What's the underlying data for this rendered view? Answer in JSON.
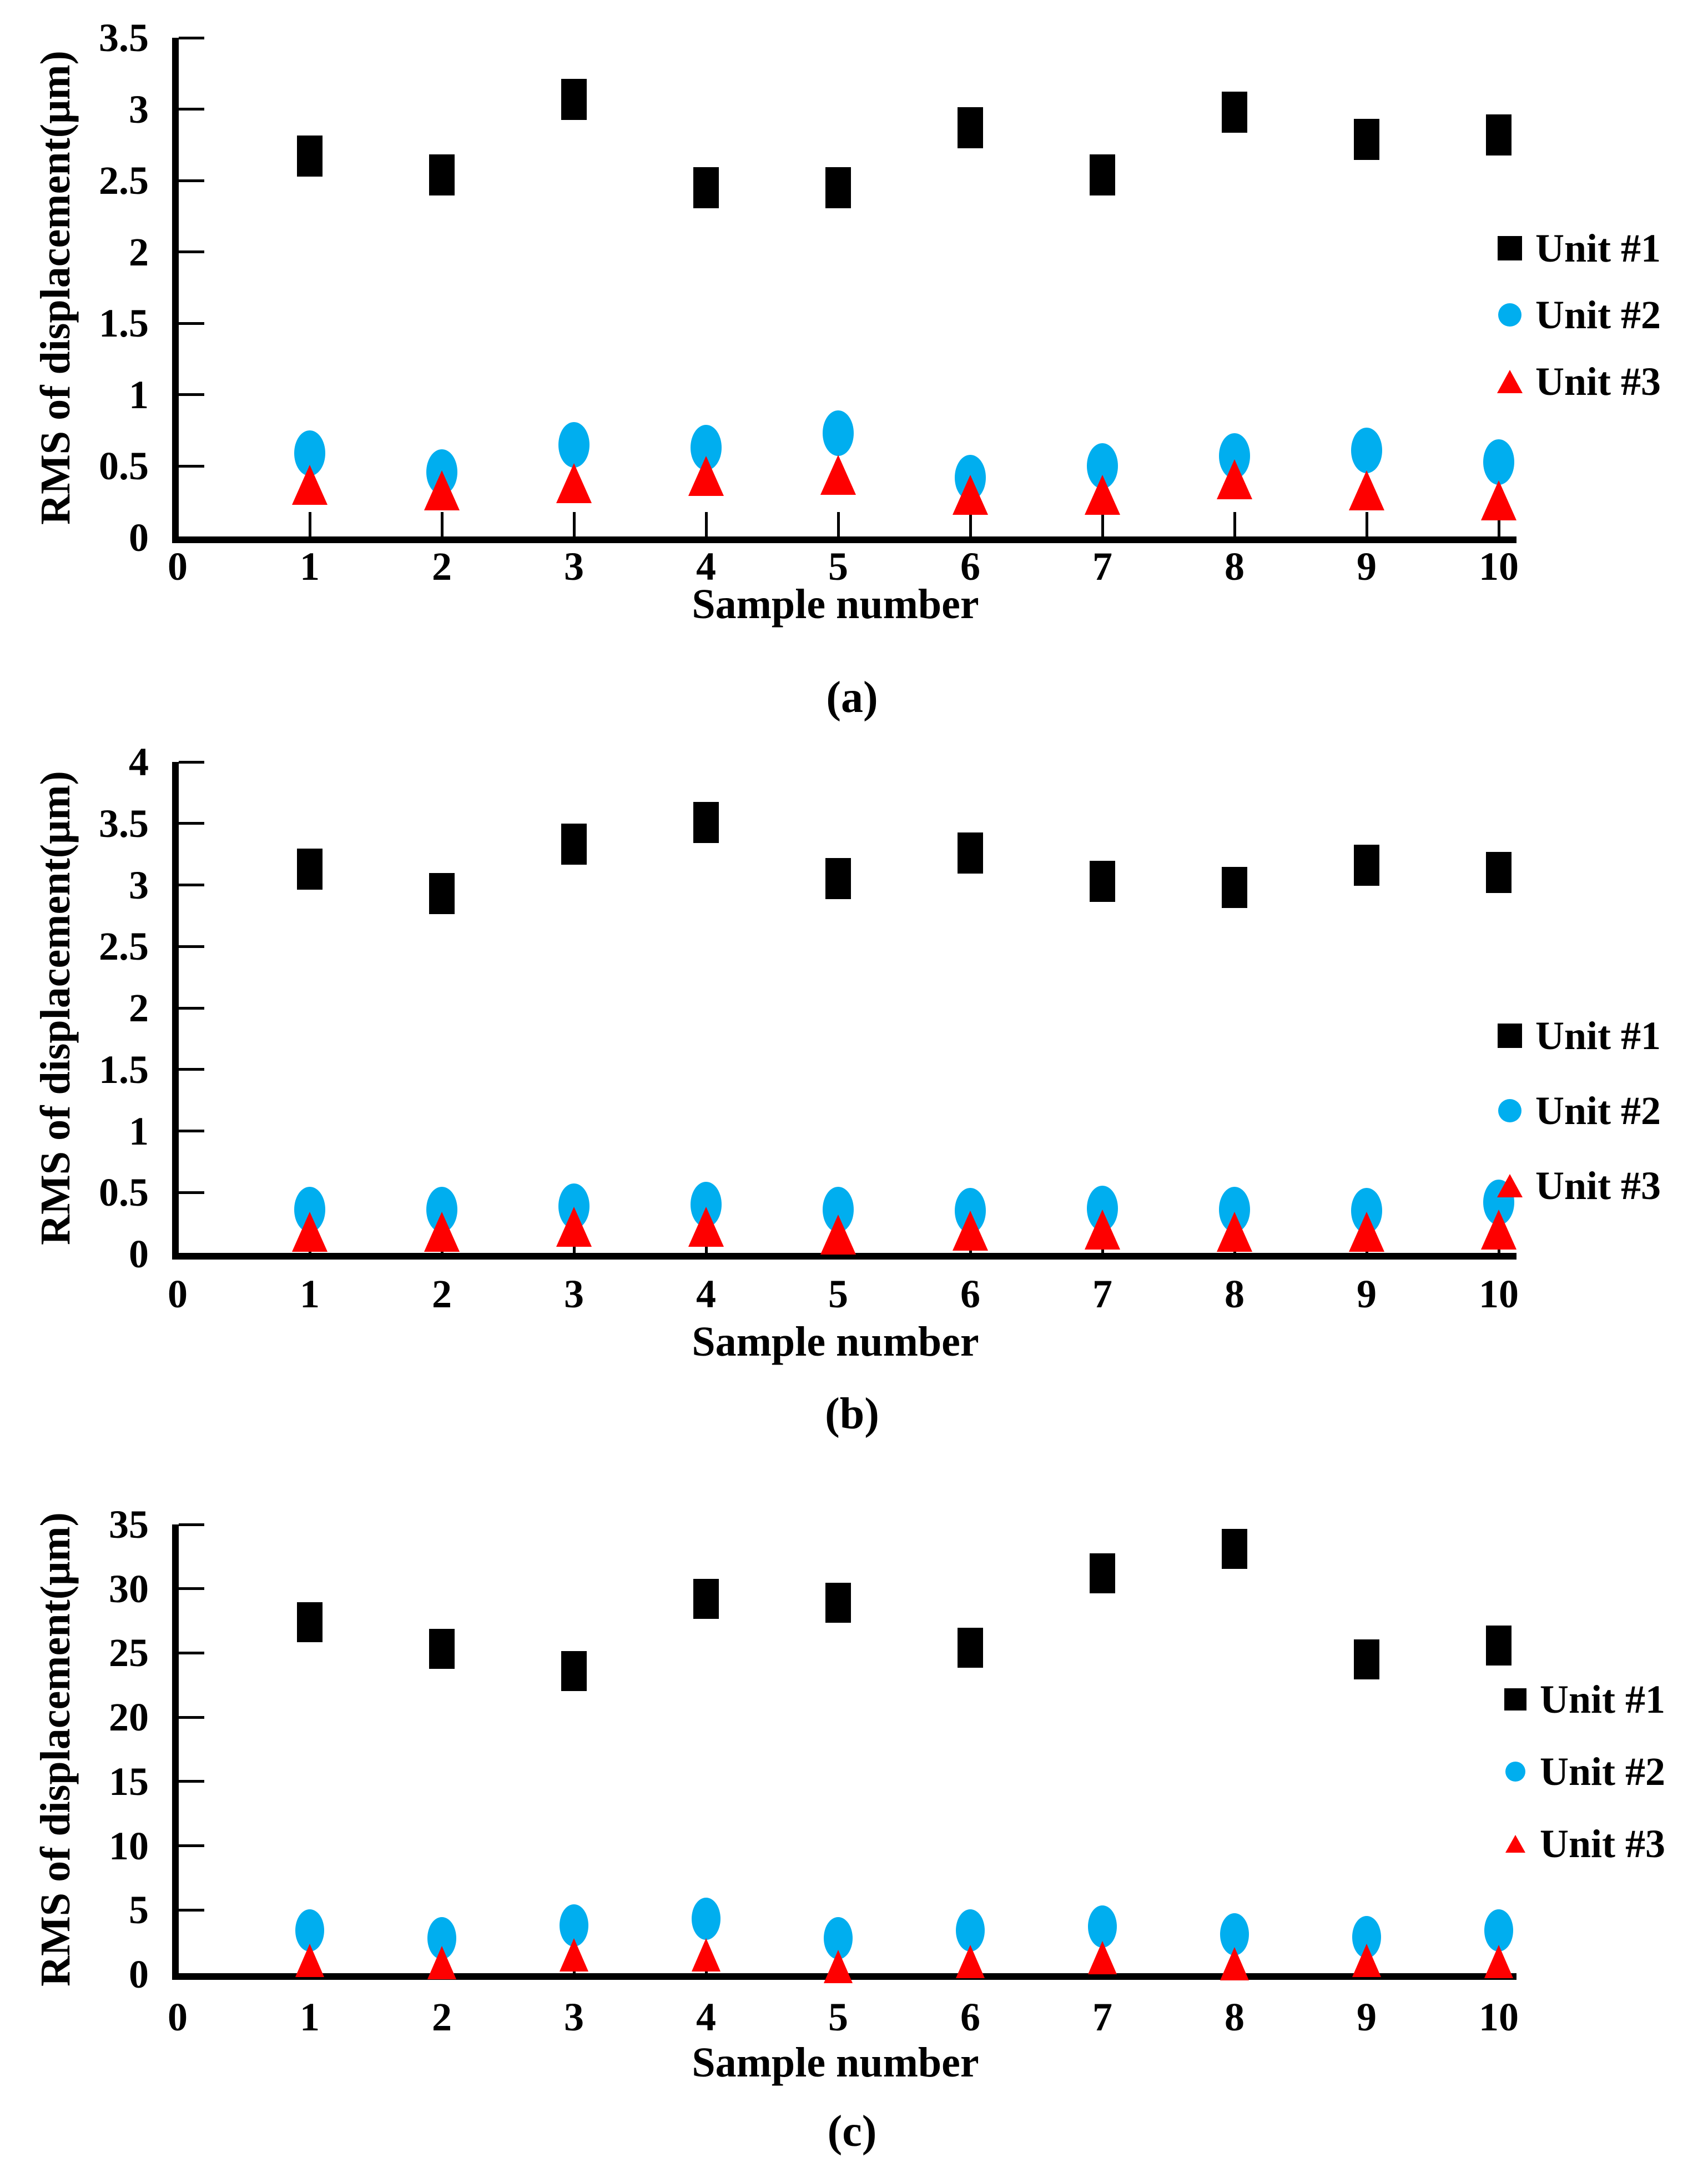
{
  "figure": {
    "captions": [
      "(a)",
      "(b)",
      "(c)"
    ],
    "colors": {
      "unit1": "#000000",
      "unit2": "#00AEEF",
      "unit3": "#FE0000"
    }
  },
  "chart_data": [
    {
      "type": "scatter",
      "caption": "(a)",
      "ylabel": "RMS of displacement(μm)",
      "xlabel": "Sample number",
      "x": [
        1,
        2,
        3,
        4,
        5,
        6,
        7,
        8,
        9,
        10
      ],
      "xtick_labels": [
        "0",
        "1",
        "2",
        "3",
        "4",
        "5",
        "6",
        "7",
        "8",
        "9",
        "10"
      ],
      "xlim": [
        0,
        10
      ],
      "ylim": [
        0,
        3.5
      ],
      "ytick_step": 0.5,
      "ytick_labels": [
        "0",
        "0.5",
        "1",
        "1.5",
        "2",
        "2.5",
        "3",
        "3.5"
      ],
      "grid": false,
      "legend_position": "right",
      "series": [
        {
          "name": "Unit #1",
          "marker": "square",
          "color": "#000000",
          "values": [
            2.67,
            2.54,
            3.07,
            2.45,
            2.45,
            2.87,
            2.54,
            2.98,
            2.79,
            2.82
          ]
        },
        {
          "name": "Unit #2",
          "marker": "circle",
          "color": "#00AEEF",
          "values": [
            0.59,
            0.46,
            0.65,
            0.63,
            0.73,
            0.42,
            0.5,
            0.57,
            0.61,
            0.53
          ]
        },
        {
          "name": "Unit #3",
          "marker": "triangle",
          "color": "#FE0000",
          "values": [
            0.37,
            0.33,
            0.38,
            0.43,
            0.44,
            0.3,
            0.3,
            0.41,
            0.33,
            0.26
          ]
        }
      ]
    },
    {
      "type": "scatter",
      "caption": "(b)",
      "ylabel": "RMS of displacement(μm)",
      "xlabel": "Sample number",
      "x": [
        1,
        2,
        3,
        4,
        5,
        6,
        7,
        8,
        9,
        10
      ],
      "xtick_labels": [
        "0",
        "1",
        "2",
        "3",
        "4",
        "5",
        "6",
        "7",
        "8",
        "9",
        "10"
      ],
      "xlim": [
        0,
        10
      ],
      "ylim": [
        0,
        4
      ],
      "ytick_step": 0.5,
      "ytick_labels": [
        "0",
        "0.5",
        "1",
        "1.5",
        "2",
        "2.5",
        "3",
        "3.5",
        "4"
      ],
      "grid": false,
      "legend_position": "right",
      "series": [
        {
          "name": "Unit #1",
          "marker": "square",
          "color": "#000000",
          "values": [
            3.13,
            2.93,
            3.33,
            3.51,
            3.05,
            3.26,
            3.03,
            2.98,
            3.16,
            3.1
          ]
        },
        {
          "name": "Unit #2",
          "marker": "circle",
          "color": "#00AEEF",
          "values": [
            0.36,
            0.36,
            0.39,
            0.4,
            0.36,
            0.35,
            0.37,
            0.36,
            0.35,
            0.42
          ]
        },
        {
          "name": "Unit #3",
          "marker": "triangle",
          "color": "#FE0000",
          "values": [
            0.18,
            0.18,
            0.22,
            0.22,
            0.16,
            0.19,
            0.2,
            0.18,
            0.18,
            0.2
          ]
        }
      ]
    },
    {
      "type": "scatter",
      "caption": "(c)",
      "ylabel": "RMS of displacement(μm)",
      "xlabel": "Sample number",
      "x": [
        1,
        2,
        3,
        4,
        5,
        6,
        7,
        8,
        9,
        10
      ],
      "xtick_labels": [
        "0",
        "1",
        "2",
        "3",
        "4",
        "5",
        "6",
        "7",
        "8",
        "9",
        "10"
      ],
      "xlim": [
        0,
        10
      ],
      "ylim": [
        0,
        35
      ],
      "ytick_step": 5,
      "ytick_labels": [
        "0",
        "5",
        "10",
        "15",
        "20",
        "25",
        "30",
        "35"
      ],
      "grid": false,
      "legend_position": "right",
      "series": [
        {
          "name": "Unit #1",
          "marker": "square",
          "color": "#000000",
          "values": [
            27.4,
            25.3,
            23.6,
            29.2,
            28.9,
            25.4,
            31.2,
            33.1,
            24.5,
            25.6
          ]
        },
        {
          "name": "Unit #2",
          "marker": "circle",
          "color": "#00AEEF",
          "values": [
            3.4,
            2.8,
            3.8,
            4.3,
            2.8,
            3.4,
            3.7,
            3.1,
            2.9,
            3.4
          ]
        },
        {
          "name": "Unit #3",
          "marker": "triangle",
          "color": "#FE0000",
          "values": [
            1.1,
            0.9,
            1.5,
            1.5,
            0.6,
            1.0,
            1.3,
            0.8,
            1.1,
            1.0
          ]
        }
      ]
    }
  ]
}
